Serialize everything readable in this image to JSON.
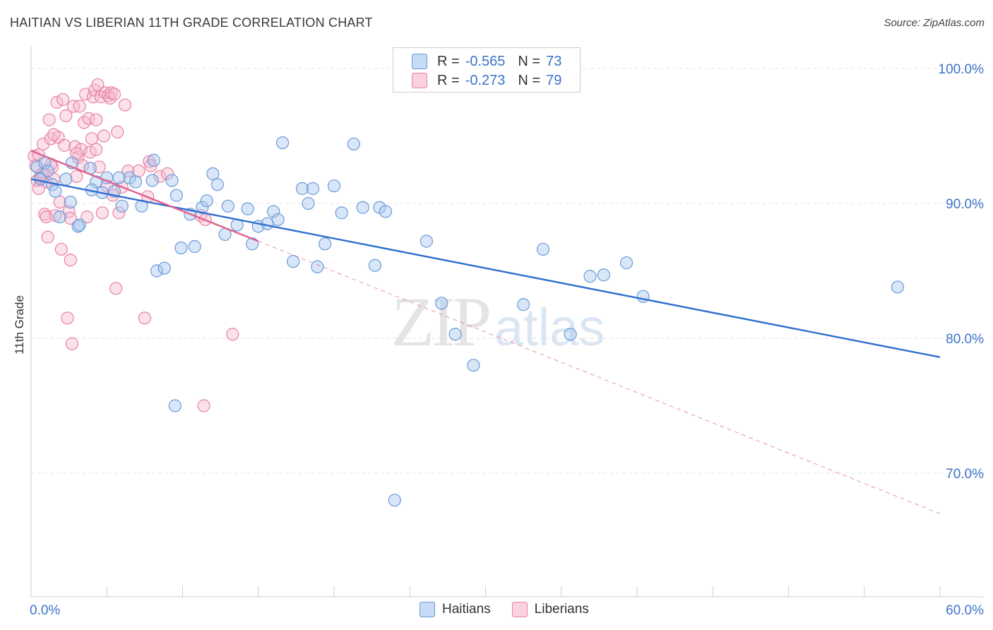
{
  "title": "HAITIAN VS LIBERIAN 11TH GRADE CORRELATION CHART",
  "source": "Source: ZipAtlas.com",
  "watermark": {
    "zip": "ZIP",
    "atlas": "atlas"
  },
  "legend": {
    "rows": [
      {
        "r_label": "R =",
        "r_value": "-0.565",
        "n_label": "N =",
        "n_value": "73",
        "color": "#a9c8f0",
        "stroke": "#6a9bd8"
      },
      {
        "r_label": "R =",
        "r_value": "-0.273",
        "n_label": "N =",
        "n_value": "79",
        "color": "#f6bcd0",
        "stroke": "#e882a6"
      }
    ]
  },
  "bottom_legend": [
    "Haitians",
    "Liberians"
  ],
  "chart_data": {
    "type": "scatter",
    "xlabel": "",
    "ylabel": "11th Grade",
    "xlim": [
      0,
      60
    ],
    "ylim": [
      60,
      100
    ],
    "x_tick_labels": [
      "0.0%",
      "60.0%"
    ],
    "y_ticks": [
      {
        "value": 100,
        "label": "100.0%"
      },
      {
        "value": 90,
        "label": "90.0%"
      },
      {
        "value": 80,
        "label": "80.0%"
      },
      {
        "value": 70,
        "label": "70.0%"
      }
    ],
    "grid": true,
    "series": [
      {
        "name": "Haitians",
        "color": "#a9c8f0",
        "stroke": "#6a9bd8",
        "line_color": "#2f6fd0",
        "trend": {
          "x": [
            0,
            60
          ],
          "y": [
            91.8,
            78.6
          ],
          "dashed_extension": false
        },
        "points": [
          [
            0.4,
            92.7
          ],
          [
            0.9,
            93.0
          ],
          [
            1.1,
            92.4
          ],
          [
            1.4,
            91.4
          ],
          [
            1.6,
            90.9
          ],
          [
            1.9,
            89.0
          ],
          [
            2.3,
            91.8
          ],
          [
            2.6,
            90.1
          ],
          [
            2.7,
            93.0
          ],
          [
            3.1,
            88.3
          ],
          [
            3.9,
            92.6
          ],
          [
            4.3,
            91.6
          ],
          [
            4.7,
            90.8
          ],
          [
            5.0,
            91.9
          ],
          [
            5.5,
            90.9
          ],
          [
            6.0,
            89.8
          ],
          [
            6.5,
            91.9
          ],
          [
            6.9,
            91.6
          ],
          [
            7.3,
            89.8
          ],
          [
            8.0,
            91.7
          ],
          [
            8.3,
            85.0
          ],
          [
            8.8,
            85.2
          ],
          [
            9.3,
            91.7
          ],
          [
            9.6,
            90.6
          ],
          [
            9.9,
            86.7
          ],
          [
            10.5,
            89.2
          ],
          [
            10.8,
            86.8
          ],
          [
            11.3,
            89.7
          ],
          [
            11.6,
            90.2
          ],
          [
            12.0,
            92.2
          ],
          [
            12.3,
            91.4
          ],
          [
            12.8,
            87.7
          ],
          [
            13.0,
            89.8
          ],
          [
            13.6,
            88.4
          ],
          [
            14.3,
            89.6
          ],
          [
            14.6,
            87.0
          ],
          [
            15.0,
            88.3
          ],
          [
            15.6,
            88.5
          ],
          [
            16.0,
            89.4
          ],
          [
            16.3,
            88.8
          ],
          [
            16.6,
            94.5
          ],
          [
            17.3,
            85.7
          ],
          [
            17.9,
            91.1
          ],
          [
            18.3,
            90.0
          ],
          [
            18.6,
            91.1
          ],
          [
            18.9,
            85.3
          ],
          [
            19.4,
            87.0
          ],
          [
            20.0,
            91.3
          ],
          [
            20.5,
            89.3
          ],
          [
            21.3,
            94.4
          ],
          [
            21.9,
            89.7
          ],
          [
            22.7,
            85.4
          ],
          [
            23.0,
            89.7
          ],
          [
            23.4,
            89.4
          ],
          [
            26.1,
            87.2
          ],
          [
            27.1,
            82.6
          ],
          [
            28.0,
            80.3
          ],
          [
            29.2,
            78.0
          ],
          [
            32.5,
            82.5
          ],
          [
            33.8,
            86.6
          ],
          [
            35.6,
            80.3
          ],
          [
            36.9,
            84.6
          ],
          [
            37.8,
            84.7
          ],
          [
            39.3,
            85.6
          ],
          [
            40.4,
            83.1
          ],
          [
            57.2,
            83.8
          ],
          [
            24.0,
            68.0
          ],
          [
            9.5,
            75.0
          ],
          [
            5.8,
            91.9
          ],
          [
            3.2,
            88.4
          ],
          [
            4.0,
            91.0
          ],
          [
            0.6,
            91.8
          ],
          [
            8.1,
            93.2
          ]
        ]
      },
      {
        "name": "Liberians",
        "color": "#f6bcd0",
        "stroke": "#e882a6",
        "line_color": "#e0608f",
        "trend": {
          "x": [
            0,
            15
          ],
          "y": [
            93.9,
            87.2
          ],
          "dashed_extension": {
            "x": [
              15,
              60
            ],
            "y": [
              87.2,
              67.0
            ]
          }
        },
        "points": [
          [
            0.2,
            93.5
          ],
          [
            0.3,
            92.8
          ],
          [
            0.4,
            91.7
          ],
          [
            0.5,
            93.6
          ],
          [
            0.6,
            91.9
          ],
          [
            0.7,
            92.1
          ],
          [
            0.8,
            94.4
          ],
          [
            0.9,
            89.2
          ],
          [
            1.0,
            91.6
          ],
          [
            1.1,
            87.5
          ],
          [
            1.2,
            96.2
          ],
          [
            1.3,
            94.8
          ],
          [
            1.4,
            92.7
          ],
          [
            1.5,
            91.8
          ],
          [
            1.6,
            89.1
          ],
          [
            1.7,
            97.5
          ],
          [
            1.8,
            94.9
          ],
          [
            1.9,
            90.1
          ],
          [
            2.0,
            86.6
          ],
          [
            2.1,
            97.7
          ],
          [
            2.2,
            94.3
          ],
          [
            2.3,
            96.5
          ],
          [
            2.4,
            81.5
          ],
          [
            2.5,
            89.4
          ],
          [
            2.6,
            85.8
          ],
          [
            2.7,
            79.6
          ],
          [
            2.8,
            97.2
          ],
          [
            2.9,
            94.2
          ],
          [
            3.0,
            92.0
          ],
          [
            3.1,
            93.4
          ],
          [
            3.2,
            97.2
          ],
          [
            3.3,
            94.0
          ],
          [
            3.4,
            92.8
          ],
          [
            3.5,
            96.0
          ],
          [
            3.6,
            98.1
          ],
          [
            3.7,
            89.0
          ],
          [
            3.8,
            96.3
          ],
          [
            3.9,
            93.8
          ],
          [
            4.0,
            94.8
          ],
          [
            4.1,
            97.9
          ],
          [
            4.2,
            98.4
          ],
          [
            4.3,
            94.0
          ],
          [
            4.4,
            98.8
          ],
          [
            4.5,
            92.7
          ],
          [
            4.6,
            97.9
          ],
          [
            4.7,
            89.3
          ],
          [
            4.8,
            95.0
          ],
          [
            4.9,
            98.2
          ],
          [
            5.0,
            91.3
          ],
          [
            5.1,
            98.0
          ],
          [
            5.2,
            97.8
          ],
          [
            5.3,
            98.2
          ],
          [
            5.4,
            90.6
          ],
          [
            5.5,
            98.1
          ],
          [
            5.6,
            83.7
          ],
          [
            5.7,
            95.3
          ],
          [
            5.8,
            89.3
          ],
          [
            6.0,
            91.2
          ],
          [
            6.2,
            97.3
          ],
          [
            6.4,
            92.4
          ],
          [
            7.1,
            92.4
          ],
          [
            7.5,
            81.5
          ],
          [
            7.7,
            90.5
          ],
          [
            7.8,
            93.1
          ],
          [
            7.9,
            92.8
          ],
          [
            8.5,
            92.0
          ],
          [
            9.0,
            92.2
          ],
          [
            11.2,
            89.1
          ],
          [
            11.5,
            88.8
          ],
          [
            13.3,
            80.3
          ],
          [
            11.4,
            75.0
          ],
          [
            0.5,
            91.1
          ],
          [
            1.0,
            89.0
          ],
          [
            1.3,
            92.9
          ],
          [
            0.8,
            92.2
          ],
          [
            1.5,
            95.1
          ],
          [
            2.6,
            88.9
          ],
          [
            3.0,
            93.7
          ],
          [
            4.3,
            96.2
          ]
        ]
      }
    ]
  }
}
